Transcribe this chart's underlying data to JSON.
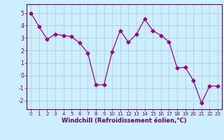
{
  "x": [
    0,
    1,
    2,
    3,
    4,
    5,
    6,
    7,
    8,
    9,
    10,
    11,
    12,
    13,
    14,
    15,
    16,
    17,
    18,
    19,
    20,
    21,
    22,
    23
  ],
  "y": [
    5.0,
    3.9,
    2.9,
    3.3,
    3.2,
    3.1,
    2.6,
    1.8,
    -0.75,
    -0.75,
    1.9,
    3.6,
    2.65,
    3.3,
    4.5,
    3.6,
    3.2,
    2.7,
    0.6,
    0.65,
    -0.4,
    -2.2,
    -0.85,
    -0.85
  ],
  "line_color": "#990099",
  "marker": "D",
  "marker_size": 2.5,
  "bg_color": "#cceeff",
  "grid_color": "#aacccc",
  "xlabel": "Windchill (Refroidissement éolien,°C)",
  "xlabel_color": "#660066",
  "tick_color": "#660066",
  "axis_color": "#660066",
  "xlim": [
    -0.5,
    23.5
  ],
  "ylim": [
    -2.7,
    5.7
  ],
  "yticks": [
    -2,
    -1,
    0,
    1,
    2,
    3,
    4,
    5
  ],
  "xticks": [
    0,
    1,
    2,
    3,
    4,
    5,
    6,
    7,
    8,
    9,
    10,
    11,
    12,
    13,
    14,
    15,
    16,
    17,
    18,
    19,
    20,
    21,
    22,
    23
  ]
}
